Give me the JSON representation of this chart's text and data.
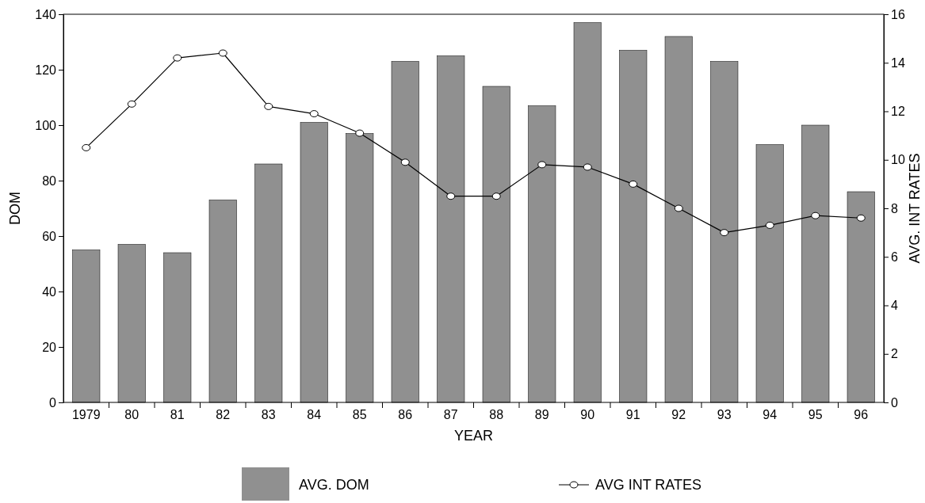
{
  "chart_data": {
    "type": "bar",
    "xlabel": "YEAR",
    "ylabel": "DOM",
    "y2label": "AVG. INT RATES",
    "categories": [
      "1979",
      "80",
      "81",
      "82",
      "83",
      "84",
      "85",
      "86",
      "87",
      "88",
      "89",
      "90",
      "91",
      "92",
      "93",
      "94",
      "95",
      "96"
    ],
    "series": [
      {
        "name": "AVG. DOM",
        "color": "#909090",
        "values": [
          55,
          57,
          54,
          73,
          86,
          101,
          97,
          123,
          125,
          114,
          107,
          137,
          127,
          132,
          123,
          93,
          100,
          76
        ]
      },
      {
        "name": "AVG INT RATES",
        "type": "line",
        "axis": "y2",
        "color": "#000000",
        "marker": "circle",
        "values": [
          10.5,
          12.3,
          14.2,
          14.4,
          12.2,
          11.9,
          11.1,
          9.9,
          8.5,
          8.5,
          9.8,
          9.7,
          9.0,
          8.0,
          7.0,
          7.3,
          7.7,
          7.6
        ]
      }
    ],
    "ylim": [
      0,
      140
    ],
    "yticks": [
      0,
      20,
      40,
      60,
      80,
      100,
      120,
      140
    ],
    "y2lim": [
      0,
      16
    ],
    "y2ticks": [
      0,
      2,
      4,
      6,
      8,
      10,
      12,
      14,
      16
    ],
    "grid": false,
    "legend": "bottom"
  }
}
